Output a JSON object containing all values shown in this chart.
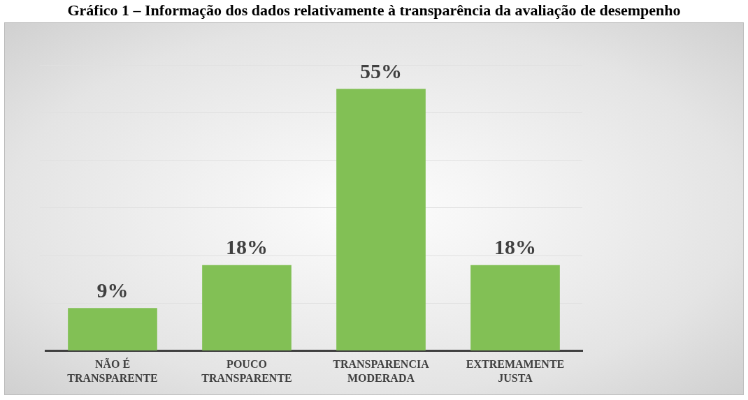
{
  "chart_data": {
    "type": "bar",
    "title": "Gráfico 1 – Informação dos dados relativamente à transparência da avaliação de desempenho",
    "categories": [
      "NÃO É TRANSPARENTE",
      "POUCO TRANSPARENTE",
      "TRANSPARENCIA MODERADA",
      "EXTREMAMENTE JUSTA"
    ],
    "values": [
      9,
      18,
      55,
      18
    ],
    "value_labels": [
      "9%",
      "18%",
      "55%",
      "18%"
    ],
    "color": "#82c055",
    "grid": "y"
  }
}
